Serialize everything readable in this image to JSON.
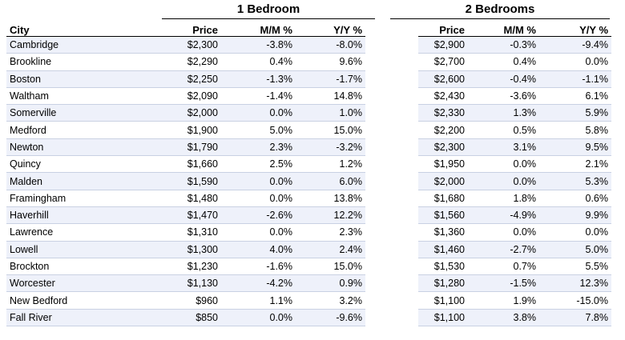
{
  "headers": {
    "group1": "1 Bedroom",
    "group2": "2 Bedrooms",
    "columns": [
      "City",
      "Price",
      "M/M %",
      "Y/Y %",
      "Price",
      "M/M %",
      "Y/Y %"
    ]
  },
  "rows": [
    [
      "Cambridge",
      "$2,300",
      "-3.8%",
      "-8.0%",
      "$2,900",
      "-0.3%",
      "-9.4%"
    ],
    [
      "Brookline",
      "$2,290",
      "0.4%",
      "9.6%",
      "$2,700",
      "0.4%",
      "0.0%"
    ],
    [
      "Boston",
      "$2,250",
      "-1.3%",
      "-1.7%",
      "$2,600",
      "-0.4%",
      "-1.1%"
    ],
    [
      "Waltham",
      "$2,090",
      "-1.4%",
      "14.8%",
      "$2,430",
      "-3.6%",
      "6.1%"
    ],
    [
      "Somerville",
      "$2,000",
      "0.0%",
      "1.0%",
      "$2,330",
      "1.3%",
      "5.9%"
    ],
    [
      "Medford",
      "$1,900",
      "5.0%",
      "15.0%",
      "$2,200",
      "0.5%",
      "5.8%"
    ],
    [
      "Newton",
      "$1,790",
      "2.3%",
      "-3.2%",
      "$2,300",
      "3.1%",
      "9.5%"
    ],
    [
      "Quincy",
      "$1,660",
      "2.5%",
      "1.2%",
      "$1,950",
      "0.0%",
      "2.1%"
    ],
    [
      "Malden",
      "$1,590",
      "0.0%",
      "6.0%",
      "$2,000",
      "0.0%",
      "5.3%"
    ],
    [
      "Framingham",
      "$1,480",
      "0.0%",
      "13.8%",
      "$1,680",
      "1.8%",
      "0.6%"
    ],
    [
      "Haverhill",
      "$1,470",
      "-2.6%",
      "12.2%",
      "$1,560",
      "-4.9%",
      "9.9%"
    ],
    [
      "Lawrence",
      "$1,310",
      "0.0%",
      "2.3%",
      "$1,360",
      "0.0%",
      "0.0%"
    ],
    [
      "Lowell",
      "$1,300",
      "4.0%",
      "2.4%",
      "$1,460",
      "-2.7%",
      "5.0%"
    ],
    [
      "Brockton",
      "$1,230",
      "-1.6%",
      "15.0%",
      "$1,530",
      "0.7%",
      "5.5%"
    ],
    [
      "Worcester",
      "$1,130",
      "-4.2%",
      "0.9%",
      "$1,280",
      "-1.5%",
      "12.3%"
    ],
    [
      "New Bedford",
      "$960",
      "1.1%",
      "3.2%",
      "$1,100",
      "1.9%",
      "-15.0%"
    ],
    [
      "Fall River",
      "$850",
      "0.0%",
      "-9.6%",
      "$1,100",
      "3.8%",
      "7.8%"
    ]
  ]
}
